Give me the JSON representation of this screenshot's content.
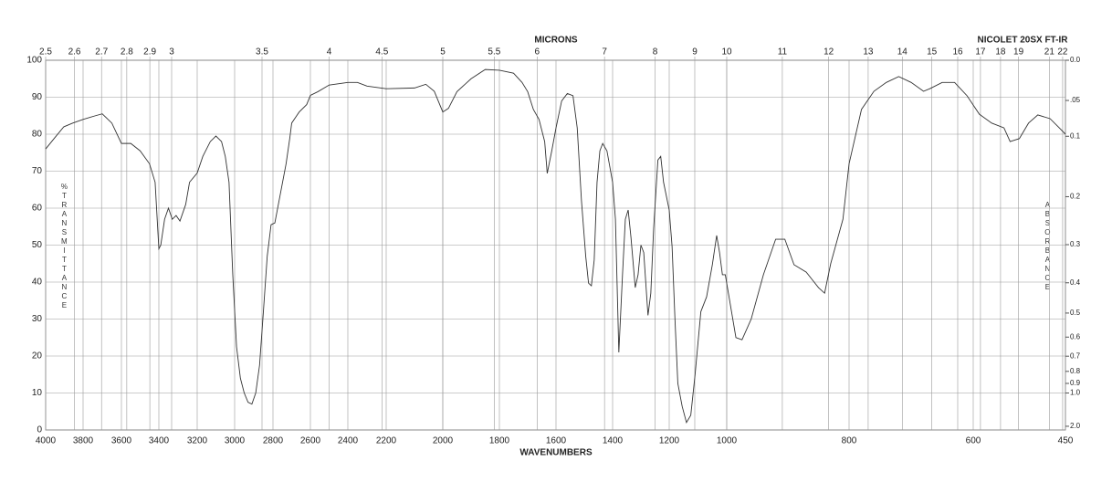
{
  "chart_data": {
    "type": "line",
    "title": "NICOLET 20SX FT-IR",
    "x_label": "WAVENUMBERS",
    "x2_label": "MICRONS",
    "y_label": "%TRANSMITTANCE",
    "y2_label": "ABSORBANCE",
    "xlim": [
      4000,
      450
    ],
    "xticks": [
      4000,
      3800,
      3600,
      3400,
      3200,
      3000,
      2800,
      2600,
      2400,
      2200,
      2000,
      1800,
      1600,
      1400,
      1200,
      1000,
      800,
      600,
      450
    ],
    "x2ticks": [
      2.5,
      2.6,
      2.7,
      2.8,
      2.9,
      3,
      3.5,
      4,
      4.5,
      5,
      5.5,
      6,
      7,
      8,
      9,
      10,
      11,
      12,
      13,
      14,
      15,
      16,
      17,
      18,
      19,
      21,
      22
    ],
    "ylim": [
      0,
      100
    ],
    "yticks": [
      0,
      10,
      20,
      30,
      40,
      50,
      60,
      70,
      80,
      90,
      100
    ],
    "y2ticks": [
      {
        "value": 0,
        "label": "0.0"
      },
      {
        "value": 0.05,
        "label": ".05"
      },
      0.1,
      0.2,
      0.3,
      0.4,
      0.5,
      0.6,
      0.7,
      0.8,
      0.9,
      {
        "value": 1,
        "label": "1.0"
      },
      {
        "value": 2,
        "label": "2.0"
      }
    ],
    "grid": true,
    "series": [
      {
        "color": "#333333",
        "x": [
          4000,
          3952,
          3903,
          3855,
          3800,
          3735,
          3700,
          3650,
          3600,
          3550,
          3500,
          3450,
          3420,
          3400,
          3390,
          3370,
          3350,
          3330,
          3310,
          3290,
          3260,
          3240,
          3200,
          3170,
          3130,
          3100,
          3070,
          3050,
          3030,
          3010,
          2990,
          2970,
          2950,
          2930,
          2910,
          2890,
          2870,
          2850,
          2830,
          2810,
          2790,
          2760,
          2730,
          2710,
          2700,
          2660,
          2620,
          2600,
          2560,
          2500,
          2400,
          2350,
          2300,
          2200,
          2100,
          2060,
          2030,
          2000,
          1980,
          1950,
          1900,
          1850,
          1800,
          1750,
          1720,
          1700,
          1680,
          1660,
          1640,
          1631,
          1615,
          1600,
          1580,
          1560,
          1540,
          1525,
          1510,
          1495,
          1485,
          1475,
          1465,
          1455,
          1445,
          1435,
          1420,
          1400,
          1390,
          1378,
          1365,
          1355,
          1345,
          1335,
          1320,
          1310,
          1300,
          1290,
          1275,
          1265,
          1255,
          1240,
          1230,
          1220,
          1200,
          1190,
          1180,
          1170,
          1155,
          1140,
          1125,
          1110,
          1090,
          1070,
          1050,
          1035,
          1025,
          1015,
          1005,
          995,
          985,
          975,
          960,
          940,
          920,
          905,
          890,
          870,
          850,
          840,
          830,
          810,
          800,
          780,
          760,
          740,
          720,
          700,
          680,
          670,
          650,
          630,
          610,
          590,
          570,
          550,
          540,
          525,
          510,
          495,
          475,
          460,
          450
        ],
        "values": [
          76,
          79,
          82,
          83,
          84,
          85,
          85.5,
          83,
          77.5,
          77.5,
          75.5,
          72,
          67,
          49,
          50,
          57,
          60,
          57,
          58,
          56.5,
          61,
          67,
          69.5,
          74,
          78,
          79.5,
          78,
          74,
          67,
          42,
          22.5,
          14,
          10,
          7.5,
          7,
          10,
          17.5,
          32,
          47,
          55.5,
          56,
          64,
          72,
          79,
          83,
          86,
          88,
          90.5,
          91.5,
          93.3,
          94,
          94,
          93,
          92.3,
          92.5,
          93.5,
          91.6,
          86,
          87,
          91.5,
          95,
          97.5,
          97.3,
          96.5,
          94,
          91.5,
          86.7,
          84,
          78,
          69.4,
          75.5,
          81.7,
          89,
          91,
          90.4,
          81.7,
          62,
          47,
          39.7,
          39,
          46,
          67,
          75.5,
          77.5,
          75.5,
          67,
          57,
          21,
          42,
          57,
          59.5,
          52,
          38.5,
          42,
          50,
          48,
          31,
          37,
          54.5,
          73,
          74,
          67,
          59.5,
          49.6,
          30,
          12.6,
          6.4,
          2,
          4,
          15,
          32,
          36,
          44.7,
          52.6,
          48,
          42,
          42,
          34.8,
          25,
          24.4,
          30,
          42,
          51.6,
          51.6,
          44.7,
          42.7,
          38.5,
          37,
          45,
          57,
          72,
          86.7,
          91.6,
          94,
          95.6,
          94,
          91.6,
          92.3,
          94,
          94,
          90.4,
          85.4,
          83,
          81.7,
          78,
          78.8,
          83,
          85.2,
          84.2,
          81.7,
          80
        ]
      }
    ]
  }
}
